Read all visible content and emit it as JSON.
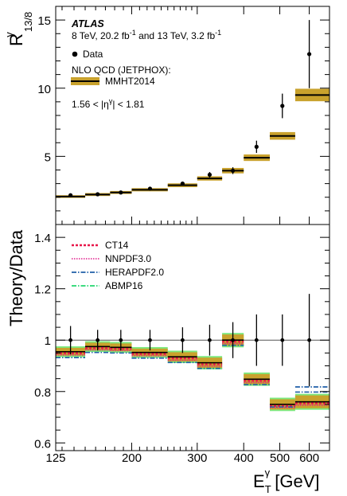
{
  "chart_data": [
    {
      "type": "line",
      "panel": "top",
      "ylabel_main": "R",
      "ylabel_sup": "γ",
      "ylabel_sub": "13/8",
      "x_scale": "log",
      "xlim": [
        125,
        680
      ],
      "ylim": [
        0,
        16
      ],
      "yticks": [
        5,
        10,
        15
      ],
      "atlas_label": "ATLAS",
      "lumi_text": "8 TeV, 20.2 fb",
      "lumi_text_b": " and 13 TeV, 3.2 fb",
      "lumi_sup": "-1",
      "data_legend": "Data",
      "theory_header": "NLO QCD (JETPHOX):",
      "theory_legend": "MMHT2014",
      "eta_text_a": "1.56 < |η",
      "eta_sup": "γ",
      "eta_text_b": "| < 1.81",
      "bins": [
        {
          "lo": 125,
          "hi": 150,
          "theory": 2.05,
          "band": 0.04
        },
        {
          "lo": 150,
          "hi": 175,
          "theory": 2.2,
          "band": 0.05
        },
        {
          "lo": 175,
          "hi": 200,
          "theory": 2.35,
          "band": 0.05
        },
        {
          "lo": 200,
          "hi": 250,
          "theory": 2.55,
          "band": 0.06
        },
        {
          "lo": 250,
          "hi": 300,
          "theory": 2.88,
          "band": 0.08
        },
        {
          "lo": 300,
          "hi": 350,
          "theory": 3.38,
          "band": 0.1
        },
        {
          "lo": 350,
          "hi": 400,
          "theory": 3.95,
          "band": 0.14
        },
        {
          "lo": 400,
          "hi": 470,
          "theory": 4.9,
          "band": 0.18
        },
        {
          "lo": 470,
          "hi": 550,
          "theory": 6.5,
          "band": 0.22
        },
        {
          "lo": 550,
          "hi": 680,
          "theory": 9.5,
          "band": 0.4
        }
      ],
      "data_points": [
        {
          "x": 137,
          "y": 2.15,
          "err": 0.06
        },
        {
          "x": 162,
          "y": 2.22,
          "err": 0.08
        },
        {
          "x": 187,
          "y": 2.35,
          "err": 0.09
        },
        {
          "x": 224,
          "y": 2.63,
          "err": 0.1
        },
        {
          "x": 274,
          "y": 3.0,
          "err": 0.13
        },
        {
          "x": 324,
          "y": 3.65,
          "err": 0.2
        },
        {
          "x": 374,
          "y": 3.95,
          "err": 0.25
        },
        {
          "x": 433,
          "y": 5.7,
          "err": 0.45
        },
        {
          "x": 508,
          "y": 8.7,
          "err": 0.9
        },
        {
          "x": 600,
          "y": 12.5,
          "err": 2.5
        }
      ]
    },
    {
      "type": "line",
      "panel": "bottom",
      "ylabel": "Theory/Data",
      "xlabel_main": "E",
      "xlabel_sup": "γ",
      "xlabel_sub": "T",
      "xlabel_unit": " [GeV]",
      "x_scale": "log",
      "xlim": [
        125,
        680
      ],
      "ylim": [
        0.57,
        1.45
      ],
      "yticks": [
        0.6,
        0.8,
        1,
        1.2,
        1.4
      ],
      "ytick_labels": [
        "0.6",
        "0.8",
        "1",
        "1.2",
        "1.4"
      ],
      "xticks": [
        125,
        200,
        300,
        400,
        500,
        600
      ],
      "xtick_labels": [
        "125",
        "200",
        "300",
        "400",
        "500",
        "600"
      ],
      "series": [
        {
          "name": "CT14",
          "color": "#e8174a",
          "style": "dotted-dense"
        },
        {
          "name": "NNPDF3.0",
          "color": "#e01e8c",
          "style": "dotted"
        },
        {
          "name": "HERAPDF2.0",
          "color": "#1f5fa8",
          "style": "dash-dot"
        },
        {
          "name": "ABMP16",
          "color": "#22d66e",
          "style": "dash-dot-light"
        }
      ],
      "bins": [
        {
          "lo": 125,
          "hi": 150,
          "mmht": 0.955,
          "band": 0.015,
          "herapdf": 0.952
        },
        {
          "lo": 150,
          "hi": 175,
          "mmht": 0.975,
          "band": 0.015,
          "herapdf": 0.972
        },
        {
          "lo": 175,
          "hi": 200,
          "mmht": 0.972,
          "band": 0.015,
          "herapdf": 0.97
        },
        {
          "lo": 200,
          "hi": 250,
          "mmht": 0.952,
          "band": 0.015,
          "herapdf": 0.95
        },
        {
          "lo": 250,
          "hi": 300,
          "mmht": 0.935,
          "band": 0.018,
          "herapdf": 0.933
        },
        {
          "lo": 300,
          "hi": 350,
          "mmht": 0.912,
          "band": 0.02,
          "herapdf": 0.91
        },
        {
          "lo": 350,
          "hi": 400,
          "mmht": 1.0,
          "band": 0.022,
          "herapdf": 1.0
        },
        {
          "lo": 400,
          "hi": 470,
          "mmht": 0.848,
          "band": 0.02,
          "herapdf": 0.847
        },
        {
          "lo": 470,
          "hi": 550,
          "mmht": 0.75,
          "band": 0.02,
          "herapdf": 0.76
        },
        {
          "lo": 550,
          "hi": 680,
          "mmht": 0.76,
          "band": 0.025,
          "herapdf": 0.818
        }
      ],
      "data_points": [
        {
          "x": 137,
          "err": 0.055
        },
        {
          "x": 162,
          "err": 0.04
        },
        {
          "x": 187,
          "err": 0.04
        },
        {
          "x": 224,
          "err": 0.04
        },
        {
          "x": 274,
          "err": 0.05
        },
        {
          "x": 324,
          "err": 0.06
        },
        {
          "x": 374,
          "err": 0.07
        },
        {
          "x": 433,
          "err": 0.1
        },
        {
          "x": 508,
          "err": 0.1
        },
        {
          "x": 600,
          "err": 0.18
        }
      ]
    }
  ]
}
